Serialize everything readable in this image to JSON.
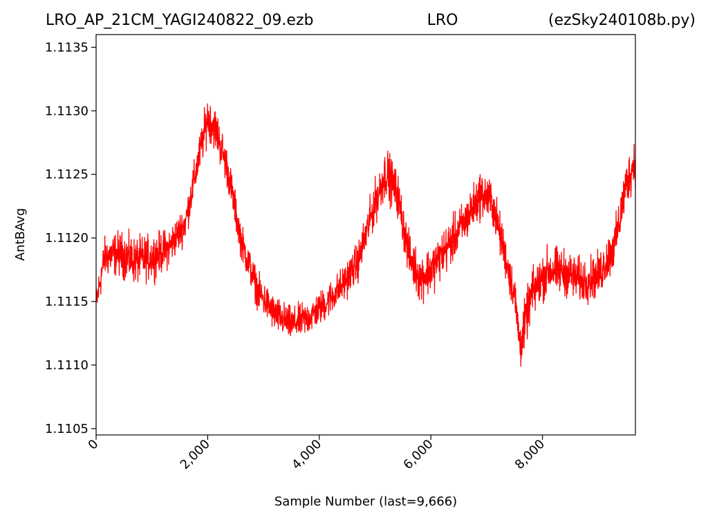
{
  "chart_data": {
    "type": "line",
    "title_left": "LRO_AP_21CM_YAGI240822_09.ezb",
    "title_center": "LRO",
    "title_right": "(ezSky240108b.py)",
    "xlabel": "Sample Number (last=9,666)",
    "ylabel": "AntBAvg",
    "xlim": [
      0,
      9666
    ],
    "ylim": [
      1.11045,
      1.1136
    ],
    "xticks": [
      0,
      2000,
      4000,
      6000,
      8000
    ],
    "xtick_labels": [
      "0",
      "2,000",
      "4,000",
      "6,000",
      "8,000"
    ],
    "yticks": [
      1.1105,
      1.111,
      1.1115,
      1.112,
      1.1125,
      1.113,
      1.1135
    ],
    "ytick_labels": [
      "1.1105",
      "1.1110",
      "1.1115",
      "1.1120",
      "1.1125",
      "1.1130",
      "1.1135"
    ],
    "grid": false,
    "series": [
      {
        "color": "#ff0000",
        "x": [
          0,
          150,
          400,
          700,
          1000,
          1300,
          1600,
          1850,
          2000,
          2150,
          2350,
          2600,
          2900,
          3200,
          3500,
          3800,
          4100,
          4400,
          4700,
          5000,
          5200,
          5400,
          5600,
          5800,
          6000,
          6300,
          6600,
          6900,
          7100,
          7300,
          7500,
          7600,
          7800,
          8100,
          8400,
          8700,
          9000,
          9300,
          9500,
          9666
        ],
        "center": [
          1.11148,
          1.11185,
          1.11188,
          1.11182,
          1.11185,
          1.11192,
          1.11212,
          1.11265,
          1.11295,
          1.11285,
          1.11255,
          1.11198,
          1.11158,
          1.1114,
          1.11132,
          1.11137,
          1.11148,
          1.11162,
          1.11182,
          1.11228,
          1.11252,
          1.11235,
          1.11188,
          1.11168,
          1.11175,
          1.11193,
          1.11212,
          1.11235,
          1.11228,
          1.11192,
          1.11155,
          1.11115,
          1.11155,
          1.11175,
          1.11173,
          1.11166,
          1.1117,
          1.11195,
          1.11242,
          1.11262
        ],
        "amplitude": [
          0.0002,
          0.00022,
          0.00025,
          0.00026,
          0.00025,
          0.00022,
          0.0002,
          0.00022,
          0.00025,
          0.00024,
          0.00022,
          0.0002,
          0.0002,
          0.0002,
          0.00019,
          0.00019,
          0.00019,
          0.0002,
          0.00022,
          0.00025,
          0.00028,
          0.00025,
          0.00025,
          0.00026,
          0.00027,
          0.00026,
          0.00025,
          0.00026,
          0.00025,
          0.00024,
          0.00024,
          0.00028,
          0.00027,
          0.00027,
          0.00026,
          0.00025,
          0.00025,
          0.00026,
          0.00026,
          0.00028
        ]
      }
    ]
  }
}
